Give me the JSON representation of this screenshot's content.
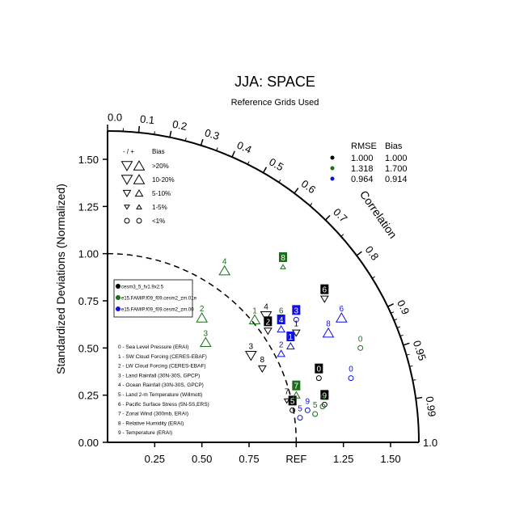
{
  "chart_data": {
    "type": "taylor",
    "title": "JJA: SPACE",
    "subtitle": "Reference Grids Used",
    "ylabel": "Standardized Deviations (Normalized)",
    "correlation_label": "Correlation",
    "ref_label": "REF",
    "std_max": 1.65,
    "std_ticks": [
      "0.00",
      "0.25",
      "0.50",
      "0.75",
      "1.00",
      "1.25",
      "1.50"
    ],
    "x_tick_labels": [
      "0.25",
      "0.50",
      "0.75",
      "REF",
      "1.25",
      "1.50"
    ],
    "arc_end_label": "1.0",
    "corr_ticks": [
      "0.0",
      "0.1",
      "0.2",
      "0.3",
      "0.4",
      "0.5",
      "0.6",
      "0.7",
      "0.8",
      "0.9",
      "0.95",
      "0.99"
    ],
    "bias_legend": {
      "header": "- / +",
      "title": "Bias",
      "rows": [
        ">20%",
        "10-20%",
        "5-10%",
        "1-5%",
        "<1%"
      ]
    },
    "cases": [
      {
        "name": "cesm3_5_fv1.9x2.5",
        "color": "#000000",
        "rmse": "1.000",
        "bias": "1.000"
      },
      {
        "name": "e15.FAMIP.f09_f09.cesm2_zm.01e",
        "color": "#1a6e1a",
        "rmse": "1.318",
        "bias": "1.700"
      },
      {
        "name": "e15.FAMIP.f09_f09.cesm2_zm.00",
        "color": "#1010e0",
        "rmse": "0.964",
        "bias": "0.914"
      }
    ],
    "table_headers": [
      "RMSE",
      "Bias"
    ],
    "variables": [
      "0 - Sea Level Pressure (ERAI)",
      "1 - SW Cloud Forcing (CERES-EBAF)",
      "2 - LW Cloud Forcing (CERES-EBAF)",
      "3 - Land Rainfall (30N-30S, GPCP)",
      "4 - Ocean Rainfall (30N-30S, GPCP)",
      "5 - Land 2-m Temperature (Willmott)",
      "6 - Pacific Surface Stress (5N-5S,ERS)",
      "7 - Zonal Wind (300mb, ERAI)",
      "8 - Relative Humidity (ERAI)",
      "9 - Temperature (ERAI)"
    ],
    "points": [
      {
        "case": 0,
        "var": "0",
        "x": 1.12,
        "y": 0.34,
        "marker": "circle",
        "boxed": true
      },
      {
        "case": 0,
        "var": "1",
        "x": 1.0,
        "y": 0.58,
        "marker": "tri-down-small",
        "boxed": false
      },
      {
        "case": 0,
        "var": "2",
        "x": 0.85,
        "y": 0.59,
        "marker": "tri-down-small",
        "boxed": true
      },
      {
        "case": 0,
        "var": "3",
        "x": 0.76,
        "y": 0.46,
        "marker": "tri-down",
        "boxed": false
      },
      {
        "case": 0,
        "var": "4",
        "x": 0.84,
        "y": 0.67,
        "marker": "tri-down",
        "boxed": false
      },
      {
        "case": 0,
        "var": "5",
        "x": 0.98,
        "y": 0.17,
        "marker": "circle",
        "boxed": true
      },
      {
        "case": 0,
        "var": "6",
        "x": 1.15,
        "y": 0.76,
        "marker": "tri-down-small",
        "boxed": true
      },
      {
        "case": 0,
        "var": "7",
        "x": 0.95,
        "y": 0.22,
        "marker": "tri-down-tiny",
        "boxed": false
      },
      {
        "case": 0,
        "var": "8",
        "x": 0.82,
        "y": 0.39,
        "marker": "tri-down-small",
        "boxed": false
      },
      {
        "case": 0,
        "var": "9",
        "x": 1.15,
        "y": 0.2,
        "marker": "circle",
        "boxed": true
      },
      {
        "case": 1,
        "var": "0",
        "x": 1.34,
        "y": 0.5,
        "marker": "circle",
        "boxed": false
      },
      {
        "case": 1,
        "var": "1",
        "x": 0.78,
        "y": 0.65,
        "marker": "tri-up",
        "boxed": false
      },
      {
        "case": 1,
        "var": "2",
        "x": 0.5,
        "y": 0.66,
        "marker": "tri-up",
        "boxed": false
      },
      {
        "case": 1,
        "var": "3",
        "x": 0.52,
        "y": 0.53,
        "marker": "tri-up",
        "boxed": false
      },
      {
        "case": 1,
        "var": "4",
        "x": 0.62,
        "y": 0.91,
        "marker": "tri-up",
        "boxed": false
      },
      {
        "case": 1,
        "var": "5",
        "x": 1.1,
        "y": 0.15,
        "marker": "circle",
        "boxed": false
      },
      {
        "case": 1,
        "var": "6",
        "x": 0.92,
        "y": 0.65,
        "marker": "tri-up-small",
        "boxed": false
      },
      {
        "case": 1,
        "var": "7",
        "x": 1.0,
        "y": 0.25,
        "marker": "tri-up-small",
        "boxed": true
      },
      {
        "case": 1,
        "var": "8",
        "x": 0.93,
        "y": 0.93,
        "marker": "tri-up-tiny",
        "boxed": true
      },
      {
        "case": 1,
        "var": "9",
        "x": 1.14,
        "y": 0.19,
        "marker": "circle",
        "boxed": false
      },
      {
        "case": 2,
        "var": "0",
        "x": 1.29,
        "y": 0.34,
        "marker": "circle",
        "boxed": false
      },
      {
        "case": 2,
        "var": "1",
        "x": 0.97,
        "y": 0.51,
        "marker": "tri-up-small",
        "boxed": true
      },
      {
        "case": 2,
        "var": "2",
        "x": 0.92,
        "y": 0.47,
        "marker": "tri-up-small",
        "boxed": false
      },
      {
        "case": 2,
        "var": "3",
        "x": 1.0,
        "y": 0.65,
        "marker": "circle",
        "boxed": true
      },
      {
        "case": 2,
        "var": "4",
        "x": 0.92,
        "y": 0.6,
        "marker": "tri-up-small",
        "boxed": true
      },
      {
        "case": 2,
        "var": "5",
        "x": 1.02,
        "y": 0.13,
        "marker": "circle",
        "boxed": false
      },
      {
        "case": 2,
        "var": "6",
        "x": 1.24,
        "y": 0.66,
        "marker": "tri-up",
        "boxed": false
      },
      {
        "case": 2,
        "var": "8",
        "x": 1.17,
        "y": 0.58,
        "marker": "tri-up",
        "boxed": false
      },
      {
        "case": 2,
        "var": "9",
        "x": 1.06,
        "y": 0.17,
        "marker": "circle",
        "boxed": false
      }
    ]
  }
}
